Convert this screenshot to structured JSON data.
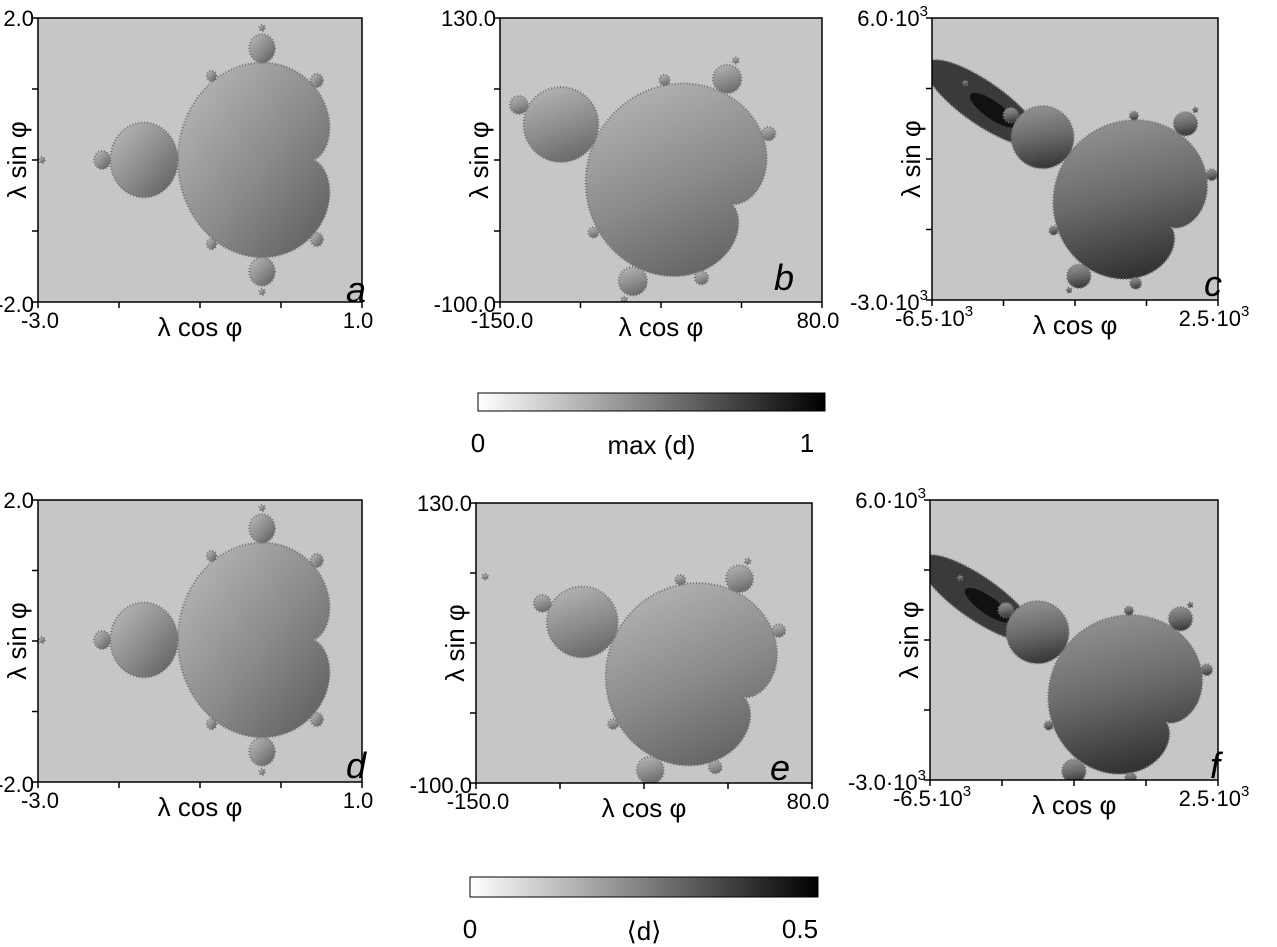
{
  "panels": [
    {
      "letter": "a",
      "xlabel": "λ cos φ",
      "ylabel": "λ sin φ",
      "x_min": "-3.0",
      "x_max": "1.0",
      "y_min": "-2.0",
      "y_max": "2.0"
    },
    {
      "letter": "b",
      "xlabel": "λ cos φ",
      "ylabel": "λ sin φ",
      "x_min": "-150.0",
      "x_max": "80.0",
      "y_min": "-100.0",
      "y_max": "130.0"
    },
    {
      "letter": "c",
      "xlabel": "λ cos φ",
      "ylabel": "λ sin φ",
      "x_min": {
        "base": "-6.5·10",
        "exp": "3"
      },
      "x_max": {
        "base": "2.5·10",
        "exp": "3"
      },
      "y_min": {
        "base": "-3.0·10",
        "exp": "3"
      },
      "y_max": {
        "base": "6.0·10",
        "exp": "3"
      }
    },
    {
      "letter": "d",
      "xlabel": "λ cos φ",
      "ylabel": "λ sin φ",
      "x_min": "-3.0",
      "x_max": "1.0",
      "y_min": "-2.0",
      "y_max": "2.0"
    },
    {
      "letter": "e",
      "xlabel": "λ cos φ",
      "ylabel": "λ sin φ",
      "x_min": "-150.0",
      "x_max": "80.0",
      "y_min": "-100.0",
      "y_max": "130.0"
    },
    {
      "letter": "f",
      "xlabel": "λ cos φ",
      "ylabel": "λ sin φ",
      "x_min": {
        "base": "-6.5·10",
        "exp": "3"
      },
      "x_max": {
        "base": "2.5·10",
        "exp": "3"
      },
      "y_min": {
        "base": "-3.0·10",
        "exp": "3"
      },
      "y_max": {
        "base": "6.0·10",
        "exp": "3"
      }
    }
  ],
  "colorbars": [
    {
      "min": "0",
      "label": "max (d)",
      "max": "1"
    },
    {
      "min": "0",
      "label": "⟨d⟩",
      "max": "0.5"
    }
  ]
}
